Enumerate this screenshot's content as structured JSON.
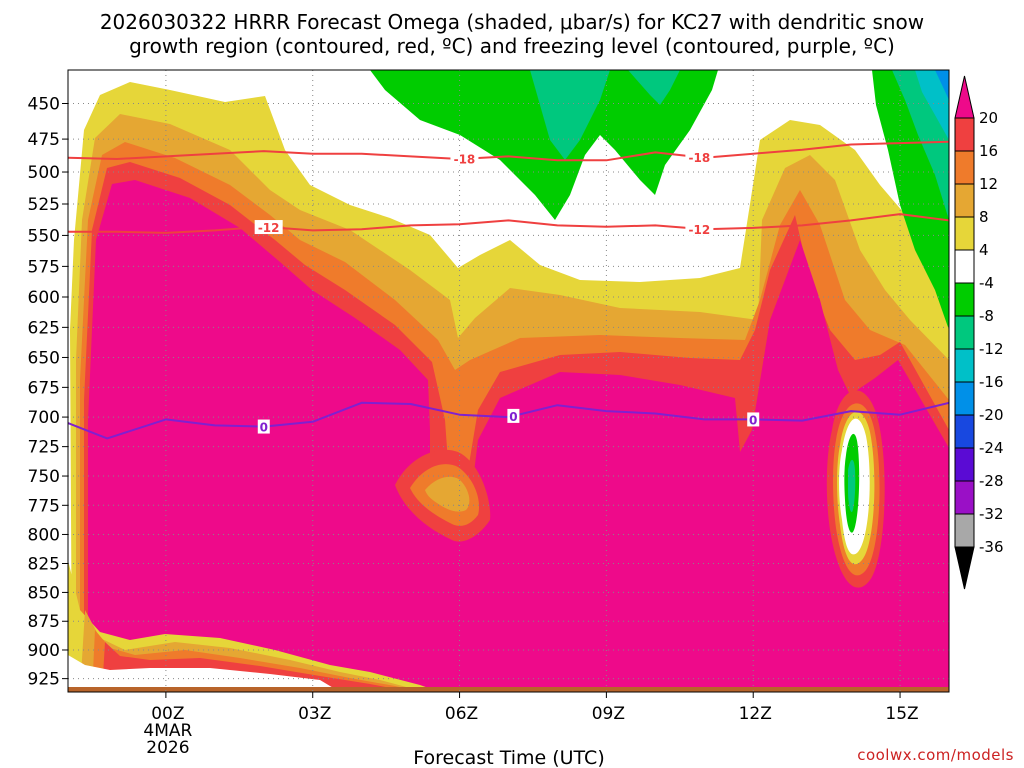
{
  "chart_data": {
    "type": "heatmap",
    "title_lines": [
      "2026030322 HRRR Forecast Omega (shaded, μbar/s) for KC27 with dendritic snow",
      "growth region (contoured, red, ºC) and freezing level (contoured, purple, ºC)"
    ],
    "xlabel": "Forecast Time (UTC)",
    "ylabel": "",
    "x_ticks": [
      {
        "hour": 0,
        "lines": [
          "00Z",
          "4MAR",
          "2026"
        ]
      },
      {
        "hour": 3,
        "lines": [
          "03Z"
        ]
      },
      {
        "hour": 6,
        "lines": [
          "06Z"
        ]
      },
      {
        "hour": 9,
        "lines": [
          "09Z"
        ]
      },
      {
        "hour": 12,
        "lines": [
          "12Z"
        ]
      },
      {
        "hour": 15,
        "lines": [
          "15Z"
        ]
      }
    ],
    "xlim": [
      -2,
      16
    ],
    "y_ticks": [
      450,
      475,
      500,
      525,
      550,
      575,
      600,
      625,
      650,
      675,
      700,
      725,
      750,
      775,
      800,
      825,
      850,
      875,
      900,
      925
    ],
    "ylim_hpa": [
      430,
      931
    ],
    "grid": true,
    "colorbar": {
      "ticks": [
        20,
        16,
        12,
        8,
        4,
        -4,
        -8,
        -12,
        -16,
        -20,
        -24,
        -28,
        -32,
        -36
      ],
      "bands": [
        {
          "range": [
            16,
            20
          ],
          "color": "#ef4040"
        },
        {
          "range": [
            12,
            16
          ],
          "color": "#ef7b2b"
        },
        {
          "range": [
            8,
            12
          ],
          "color": "#e5a733"
        },
        {
          "range": [
            4,
            8
          ],
          "color": "#e6d639"
        },
        {
          "range": [
            -4,
            4
          ],
          "color": "#ffffff"
        },
        {
          "range": [
            -8,
            -4
          ],
          "color": "#00cc00"
        },
        {
          "range": [
            -12,
            -8
          ],
          "color": "#00c87e"
        },
        {
          "range": [
            -16,
            -12
          ],
          "color": "#00c0c8"
        },
        {
          "range": [
            -20,
            -16
          ],
          "color": "#0090e8"
        },
        {
          "range": [
            -24,
            -20
          ],
          "color": "#1848e0"
        },
        {
          "range": [
            -28,
            -24
          ],
          "color": "#5a0bd4"
        },
        {
          "range": [
            -32,
            -28
          ],
          "color": "#9a10c6"
        },
        {
          "range": [
            -36,
            -32
          ],
          "color": "#a8a8a8"
        }
      ],
      "over_color": "#ee0a8a",
      "under_color": "#000000"
    },
    "contours": [
      {
        "name": "dgz-minus-18",
        "label": "-18",
        "color": "#ef4040",
        "points": [
          [
            -2,
            489
          ],
          [
            -1,
            490
          ],
          [
            0,
            488
          ],
          [
            1,
            486
          ],
          [
            2,
            484
          ],
          [
            3,
            486
          ],
          [
            4,
            486
          ],
          [
            5,
            488
          ],
          [
            6,
            490
          ],
          [
            7,
            488
          ],
          [
            8,
            491
          ],
          [
            9,
            491
          ],
          [
            10,
            485
          ],
          [
            11,
            489
          ],
          [
            12,
            486
          ],
          [
            13,
            483
          ],
          [
            14,
            479
          ],
          [
            15,
            478
          ],
          [
            16,
            477
          ]
        ],
        "label_hours": [
          6.1,
          10.9
        ]
      },
      {
        "name": "dgz-minus-12",
        "label": "-12",
        "color": "#ef4040",
        "points": [
          [
            -2,
            547
          ],
          [
            -1,
            547
          ],
          [
            0,
            548
          ],
          [
            1,
            546
          ],
          [
            2,
            543
          ],
          [
            3,
            546
          ],
          [
            4,
            545
          ],
          [
            5,
            542
          ],
          [
            6,
            541
          ],
          [
            7,
            538
          ],
          [
            8,
            542
          ],
          [
            9,
            543
          ],
          [
            10,
            542
          ],
          [
            11,
            545
          ],
          [
            12,
            544
          ],
          [
            13,
            542
          ],
          [
            14,
            538
          ],
          [
            15,
            533
          ],
          [
            16,
            538
          ]
        ],
        "label_hours": [
          2.1,
          10.9
        ]
      },
      {
        "name": "freezing-level-0",
        "label": "0",
        "color": "#8020d0",
        "points": [
          [
            -2,
            705
          ],
          [
            -1.2,
            718
          ],
          [
            0,
            702
          ],
          [
            1,
            707
          ],
          [
            2,
            708
          ],
          [
            3,
            704
          ],
          [
            4,
            688
          ],
          [
            5,
            689
          ],
          [
            6,
            698
          ],
          [
            7,
            700
          ],
          [
            8,
            690
          ],
          [
            9,
            695
          ],
          [
            10,
            697
          ],
          [
            11,
            702
          ],
          [
            12,
            702
          ],
          [
            13,
            703
          ],
          [
            14,
            695
          ],
          [
            15,
            698
          ],
          [
            16,
            688
          ]
        ],
        "label_hours": [
          2.0,
          7.1,
          12.0
        ]
      }
    ]
  },
  "credit": "coolwx.com/models"
}
